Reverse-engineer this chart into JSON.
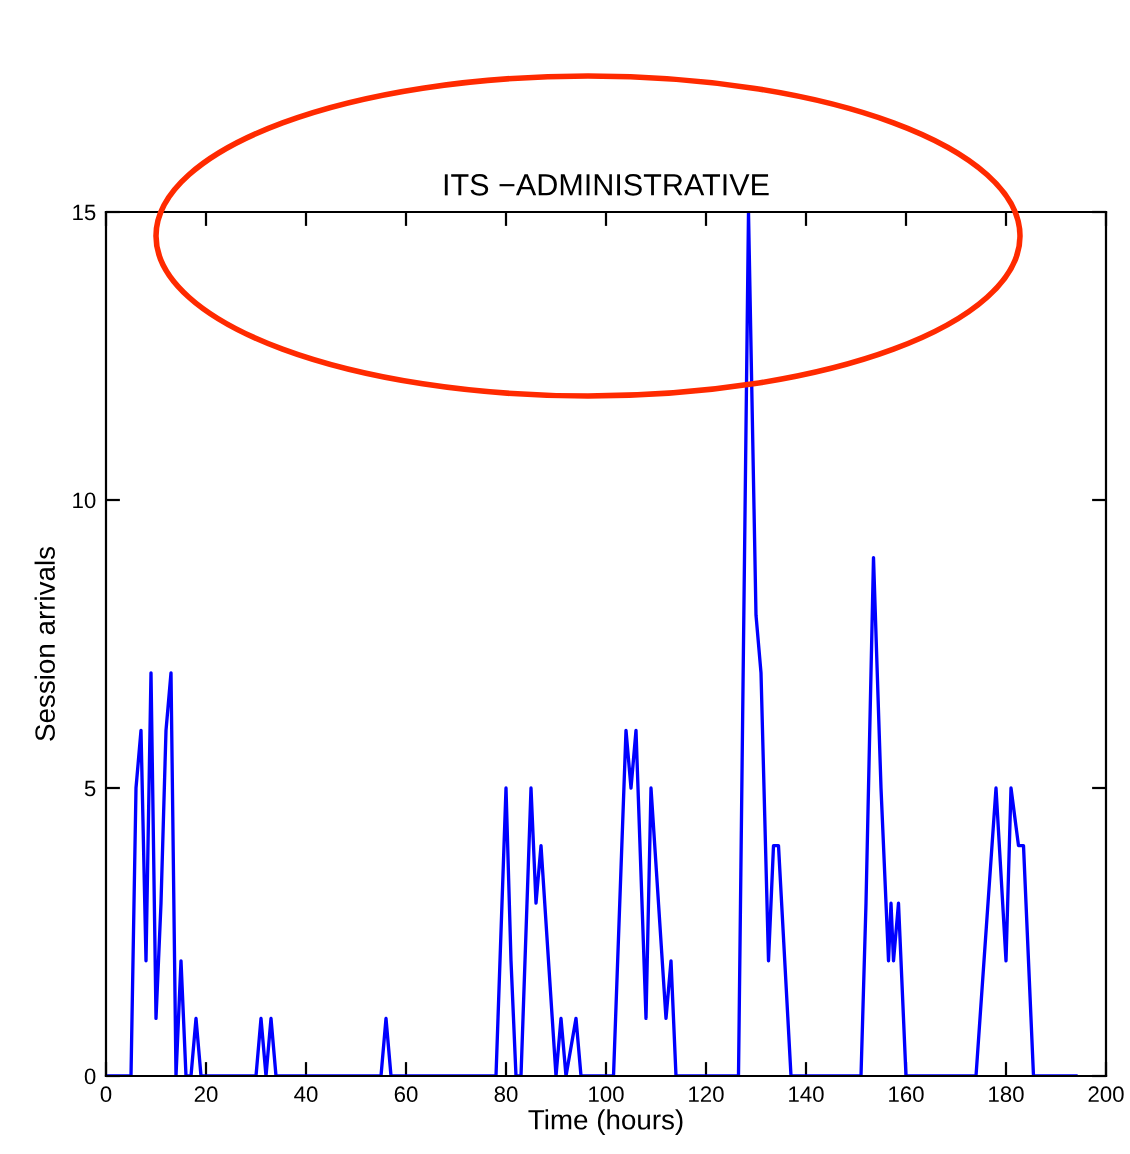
{
  "chart_data": {
    "type": "line",
    "title": "ITS −ADMINISTRATIVE",
    "xlabel": "Time (hours)",
    "ylabel": "Session arrivals",
    "xlim": [
      0,
      200
    ],
    "ylim": [
      0,
      15
    ],
    "xticks": [
      0,
      20,
      40,
      60,
      80,
      100,
      120,
      140,
      160,
      180,
      200
    ],
    "yticks": [
      0,
      5,
      10,
      15
    ],
    "grid": false,
    "series": [
      {
        "color": "#0000ff",
        "x": [
          0,
          5,
          6,
          7,
          8,
          9,
          10,
          11,
          12,
          13,
          14,
          15,
          16,
          17,
          18,
          19,
          30,
          31,
          32,
          33,
          34,
          55,
          56,
          57,
          78,
          80,
          81,
          82,
          83,
          85,
          86,
          87,
          90,
          91,
          92,
          94,
          95,
          101.5,
          104,
          105,
          106,
          108,
          109,
          112,
          113,
          114,
          126.5,
          128.5,
          130,
          131,
          132.5,
          133.5,
          134.5,
          137,
          151,
          152,
          153.5,
          155,
          156.5,
          157,
          157.5,
          158.5,
          159,
          160,
          174,
          178,
          180,
          181,
          182.5,
          183.5,
          185.5,
          194
        ],
        "values": [
          0,
          0,
          5,
          6,
          2,
          7,
          1,
          3,
          6,
          7,
          0,
          2,
          0,
          0,
          1,
          0,
          0,
          1,
          0,
          1,
          0,
          0,
          1,
          0,
          0,
          5,
          2,
          0,
          0,
          5,
          3,
          4,
          0,
          1,
          0,
          1,
          0,
          0,
          6,
          5,
          6,
          1,
          5,
          1,
          2,
          0,
          0,
          15,
          8,
          7,
          2,
          4,
          4,
          0,
          0,
          3,
          9,
          5,
          2,
          3,
          2,
          3,
          2,
          0,
          0,
          5,
          2,
          5,
          4,
          4,
          0,
          0
        ]
      }
    ]
  }
}
